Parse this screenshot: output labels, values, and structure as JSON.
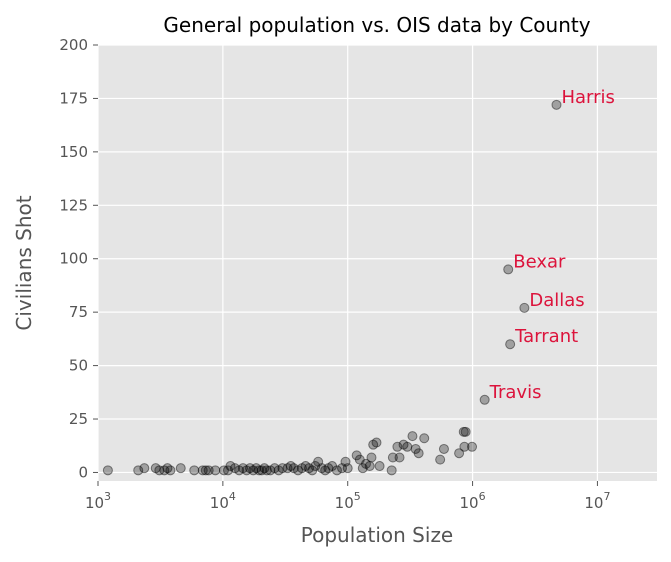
{
  "chart_data": {
    "type": "scatter",
    "title": "General population vs. OIS data by County",
    "xlabel": "Population Size",
    "ylabel": "Civilians Shot",
    "xscale": "log",
    "xlim": [
      1000,
      30000000
    ],
    "ylim": [
      -4,
      200
    ],
    "style": "ggplot",
    "background_color": "#e5e5e5",
    "grid": true,
    "grid_color": "#ffffff",
    "point_color": "#000000",
    "point_opacity": 0.3,
    "annotation_color": "#dc143c",
    "x_ticks": [
      {
        "value": 1000,
        "base": "10",
        "exp": "3"
      },
      {
        "value": 10000,
        "base": "10",
        "exp": "4"
      },
      {
        "value": 100000,
        "base": "10",
        "exp": "5"
      },
      {
        "value": 1000000,
        "base": "10",
        "exp": "6"
      },
      {
        "value": 10000000,
        "base": "10",
        "exp": "7"
      }
    ],
    "y_ticks": [
      {
        "value": 0,
        "label": "0"
      },
      {
        "value": 25,
        "label": "25"
      },
      {
        "value": 50,
        "label": "50"
      },
      {
        "value": 75,
        "label": "75"
      },
      {
        "value": 100,
        "label": "100"
      },
      {
        "value": 125,
        "label": "125"
      },
      {
        "value": 150,
        "label": "150"
      },
      {
        "value": 175,
        "label": "175"
      },
      {
        "value": 200,
        "label": "200"
      }
    ],
    "annotations": [
      {
        "text": "Harris",
        "x": 4700000,
        "y": 172
      },
      {
        "text": "Bexar",
        "x": 1930000,
        "y": 95
      },
      {
        "text": "Dallas",
        "x": 2600000,
        "y": 77
      },
      {
        "text": "Tarrant",
        "x": 2000000,
        "y": 60
      },
      {
        "text": "Travis",
        "x": 1250000,
        "y": 34
      }
    ],
    "points": [
      {
        "x": 1200,
        "y": 1
      },
      {
        "x": 2100,
        "y": 1
      },
      {
        "x": 2350,
        "y": 2
      },
      {
        "x": 2900,
        "y": 2
      },
      {
        "x": 3100,
        "y": 1
      },
      {
        "x": 3400,
        "y": 1
      },
      {
        "x": 3600,
        "y": 2
      },
      {
        "x": 3800,
        "y": 1
      },
      {
        "x": 4600,
        "y": 2
      },
      {
        "x": 5900,
        "y": 1
      },
      {
        "x": 6900,
        "y": 1
      },
      {
        "x": 7300,
        "y": 1
      },
      {
        "x": 7700,
        "y": 1
      },
      {
        "x": 8700,
        "y": 1
      },
      {
        "x": 10200,
        "y": 1
      },
      {
        "x": 11000,
        "y": 1
      },
      {
        "x": 11500,
        "y": 3
      },
      {
        "x": 12500,
        "y": 2
      },
      {
        "x": 13500,
        "y": 1
      },
      {
        "x": 14500,
        "y": 2
      },
      {
        "x": 15500,
        "y": 1
      },
      {
        "x": 16500,
        "y": 2
      },
      {
        "x": 17500,
        "y": 1
      },
      {
        "x": 18500,
        "y": 2
      },
      {
        "x": 19500,
        "y": 1
      },
      {
        "x": 20500,
        "y": 1
      },
      {
        "x": 21500,
        "y": 2
      },
      {
        "x": 22500,
        "y": 1
      },
      {
        "x": 24000,
        "y": 1
      },
      {
        "x": 26000,
        "y": 2
      },
      {
        "x": 28000,
        "y": 1
      },
      {
        "x": 30000,
        "y": 2
      },
      {
        "x": 33000,
        "y": 2
      },
      {
        "x": 35000,
        "y": 3
      },
      {
        "x": 37000,
        "y": 2
      },
      {
        "x": 40000,
        "y": 1
      },
      {
        "x": 43000,
        "y": 2
      },
      {
        "x": 46000,
        "y": 3
      },
      {
        "x": 49000,
        "y": 2
      },
      {
        "x": 52000,
        "y": 1
      },
      {
        "x": 55000,
        "y": 3
      },
      {
        "x": 58000,
        "y": 5
      },
      {
        "x": 62000,
        "y": 2
      },
      {
        "x": 66000,
        "y": 1
      },
      {
        "x": 70000,
        "y": 2
      },
      {
        "x": 75000,
        "y": 3
      },
      {
        "x": 82000,
        "y": 1
      },
      {
        "x": 90000,
        "y": 2
      },
      {
        "x": 96000,
        "y": 5
      },
      {
        "x": 100000,
        "y": 2
      },
      {
        "x": 118000,
        "y": 8
      },
      {
        "x": 125000,
        "y": 6
      },
      {
        "x": 132000,
        "y": 2
      },
      {
        "x": 140000,
        "y": 4
      },
      {
        "x": 150000,
        "y": 3
      },
      {
        "x": 155000,
        "y": 7
      },
      {
        "x": 160000,
        "y": 13
      },
      {
        "x": 170000,
        "y": 14
      },
      {
        "x": 180000,
        "y": 3
      },
      {
        "x": 225000,
        "y": 1
      },
      {
        "x": 230000,
        "y": 7
      },
      {
        "x": 250000,
        "y": 12
      },
      {
        "x": 260000,
        "y": 7
      },
      {
        "x": 280000,
        "y": 13
      },
      {
        "x": 300000,
        "y": 12
      },
      {
        "x": 330000,
        "y": 17
      },
      {
        "x": 350000,
        "y": 11
      },
      {
        "x": 370000,
        "y": 9
      },
      {
        "x": 410000,
        "y": 16
      },
      {
        "x": 550000,
        "y": 6
      },
      {
        "x": 590000,
        "y": 11
      },
      {
        "x": 780000,
        "y": 9
      },
      {
        "x": 850000,
        "y": 19
      },
      {
        "x": 880000,
        "y": 19
      },
      {
        "x": 860000,
        "y": 12
      },
      {
        "x": 990000,
        "y": 12
      },
      {
        "x": 1250000,
        "y": 34
      },
      {
        "x": 2000000,
        "y": 60
      },
      {
        "x": 2600000,
        "y": 77
      },
      {
        "x": 1930000,
        "y": 95
      },
      {
        "x": 4700000,
        "y": 172
      }
    ]
  }
}
